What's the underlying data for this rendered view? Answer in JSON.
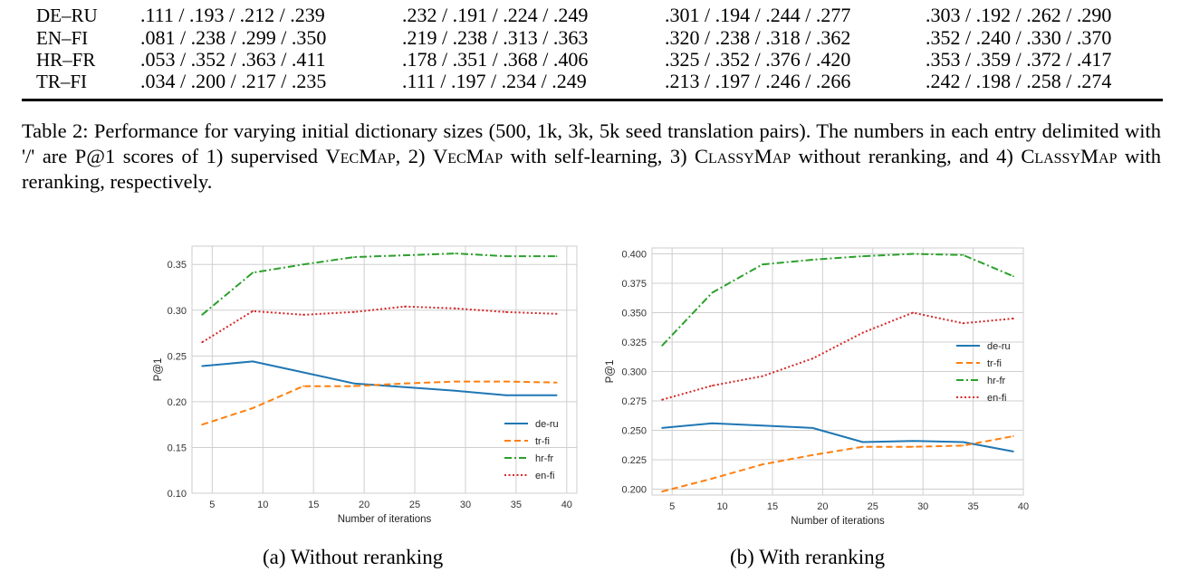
{
  "table": {
    "rows": [
      {
        "lang": "DE–RU",
        "cells": [
          ".111 / .193 / .212 / .239",
          ".232 / .191 / .224 / .249",
          ".301 / .194 / .244 / .277",
          ".303 / .192 / .262 / .290"
        ]
      },
      {
        "lang": "EN–FI",
        "cells": [
          ".081 / .238 / .299 / .350",
          ".219 / .238 / .313 / .363",
          ".320 / .238 / .318 / .362",
          ".352 / .240 / .330 / .370"
        ]
      },
      {
        "lang": "HR–FR",
        "cells": [
          ".053 / .352 / .363 / .411",
          ".178 / .351 / .368 / .406",
          ".325 / .352 / .376 / .420",
          ".353 / .359 / .372 / .417"
        ]
      },
      {
        "lang": "TR–FI",
        "cells": [
          ".034 / .200 / .217 / .235",
          ".111 / .197 / .234 / .249",
          ".213 / .197 / .246 / .266",
          ".242 / .198 / .258 / .274"
        ]
      }
    ]
  },
  "caption": {
    "p1": "Table 2:  Performance for varying initial dictionary sizes (500, 1k, 3k, 5k seed translation pairs). The numbers in each entry delimited with '/' are P@1 scores of 1) supervised ",
    "vecmap1": "VecMap",
    "p2": ", 2) ",
    "vecmap2": "VecMap",
    "p3": " with self-learning, 3) ",
    "classymap1": "ClassyMap",
    "p4": " without reranking, and 4) ",
    "classymap2": "ClassyMap",
    "p5": " with reranking, respectively."
  },
  "subcaptions": {
    "a": "(a) Without reranking",
    "b": "(b) With reranking"
  },
  "colors": {
    "de-ru": "#1f77b4",
    "tr-fi": "#ff7f0e",
    "hr-fr": "#2ca02c",
    "en-fi": "#d62728"
  },
  "chart_data": [
    {
      "type": "line",
      "xlabel": "Number of iterations",
      "ylabel": "P@1",
      "xlim": [
        3,
        41
      ],
      "ylim": [
        0.1,
        0.37
      ],
      "xticks": [
        5,
        10,
        15,
        20,
        25,
        30,
        35,
        40
      ],
      "yticks": [
        0.1,
        0.15,
        0.2,
        0.25,
        0.3,
        0.35
      ],
      "ytick_labels": [
        "0.10",
        "0.15",
        "0.20",
        "0.25",
        "0.30",
        "0.35"
      ],
      "grid": true,
      "legend": "lower-right",
      "x": [
        4,
        9,
        14,
        19,
        24,
        29,
        34,
        39
      ],
      "series": [
        {
          "name": "de-ru",
          "style": "solid",
          "values": [
            0.239,
            0.244,
            0.232,
            0.22,
            0.216,
            0.212,
            0.207,
            0.207
          ]
        },
        {
          "name": "tr-fi",
          "style": "dashed",
          "values": [
            0.175,
            0.193,
            0.217,
            0.217,
            0.22,
            0.222,
            0.222,
            0.221
          ]
        },
        {
          "name": "hr-fr",
          "style": "dashdot",
          "values": [
            0.295,
            0.341,
            0.35,
            0.358,
            0.36,
            0.362,
            0.359,
            0.359
          ]
        },
        {
          "name": "en-fi",
          "style": "dotted",
          "values": [
            0.265,
            0.299,
            0.295,
            0.298,
            0.304,
            0.302,
            0.298,
            0.296
          ]
        }
      ]
    },
    {
      "type": "line",
      "xlabel": "Number of iterations",
      "ylabel": "P@1",
      "xlim": [
        3,
        40
      ],
      "ylim": [
        0.195,
        0.405
      ],
      "xticks": [
        5,
        10,
        15,
        20,
        25,
        30,
        35,
        40
      ],
      "yticks": [
        0.2,
        0.225,
        0.25,
        0.275,
        0.3,
        0.325,
        0.35,
        0.375,
        0.4
      ],
      "ytick_labels": [
        "0.200",
        "0.225",
        "0.250",
        "0.275",
        "0.300",
        "0.325",
        "0.350",
        "0.375",
        "0.400"
      ],
      "grid": true,
      "legend": "right",
      "x": [
        4,
        9,
        14,
        19,
        24,
        29,
        34,
        39
      ],
      "series": [
        {
          "name": "de-ru",
          "style": "solid",
          "values": [
            0.252,
            0.256,
            0.254,
            0.252,
            0.24,
            0.241,
            0.24,
            0.232
          ]
        },
        {
          "name": "tr-fi",
          "style": "dashed",
          "values": [
            0.198,
            0.209,
            0.221,
            0.229,
            0.236,
            0.236,
            0.237,
            0.245
          ]
        },
        {
          "name": "hr-fr",
          "style": "dashdot",
          "values": [
            0.322,
            0.367,
            0.391,
            0.395,
            0.398,
            0.4,
            0.399,
            0.381
          ]
        },
        {
          "name": "en-fi",
          "style": "dotted",
          "values": [
            0.276,
            0.288,
            0.296,
            0.311,
            0.333,
            0.35,
            0.341,
            0.345
          ]
        }
      ]
    }
  ]
}
